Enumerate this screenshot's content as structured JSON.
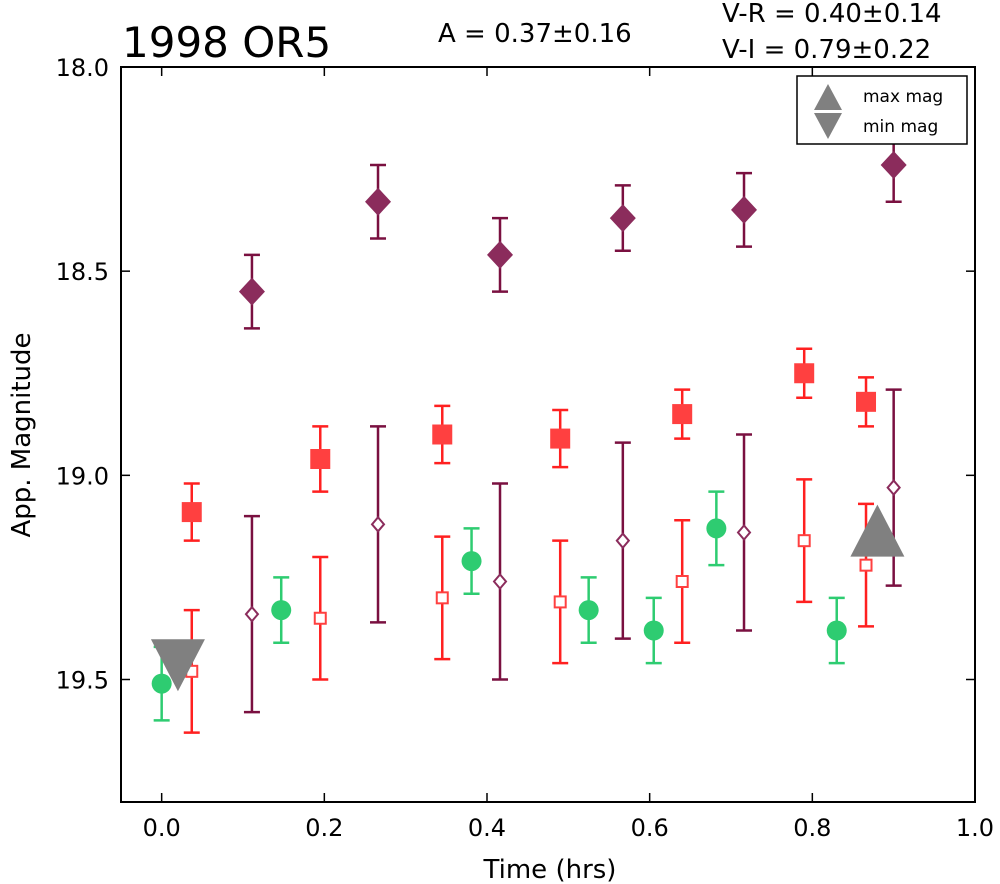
{
  "chart_data": {
    "type": "scatter",
    "title": "1998 OR5",
    "amplitude_text": "A  = 0.37±0.16",
    "color_index_lines": [
      "V-R = 0.40±0.14",
      "V-I  = 0.79±0.22"
    ],
    "xlabel": "Time (hrs)",
    "ylabel": "App. Magnitude",
    "xlim": [
      -0.05,
      1.0
    ],
    "ylim": [
      19.8,
      18.0
    ],
    "y_inverted": true,
    "grid": false,
    "x_ticks": [
      0.0,
      0.2,
      0.4,
      0.6,
      0.8,
      1.0
    ],
    "x_tick_labels": [
      "0.0",
      "0.2",
      "0.4",
      "0.6",
      "0.8",
      "1.0"
    ],
    "y_ticks": [
      18.0,
      18.5,
      19.0,
      19.5
    ],
    "y_tick_labels": [
      "18.0",
      "18.5",
      "19.0",
      "19.5"
    ],
    "legend_position": "top-right",
    "legend": [
      {
        "label": "max mag",
        "marker": "triangle-up",
        "color": "#808080"
      },
      {
        "label": "min mag",
        "marker": "triangle-down",
        "color": "#808080"
      }
    ],
    "series": [
      {
        "marker": "circle-filled",
        "color": "#2ecc71",
        "error_color": "#2ecc71",
        "points": [
          {
            "x": 0.0,
            "y": 19.51,
            "err": 0.09
          },
          {
            "x": 0.147,
            "y": 19.33,
            "err": 0.08
          },
          {
            "x": 0.381,
            "y": 19.21,
            "err": 0.08
          },
          {
            "x": 0.525,
            "y": 19.33,
            "err": 0.08
          },
          {
            "x": 0.605,
            "y": 19.38,
            "err": 0.08
          },
          {
            "x": 0.682,
            "y": 19.13,
            "err": 0.09
          },
          {
            "x": 0.83,
            "y": 19.38,
            "err": 0.08
          }
        ]
      },
      {
        "marker": "square-filled",
        "color": "#ff4040",
        "error_color": "#ff2020",
        "points": [
          {
            "x": 0.037,
            "y": 19.09,
            "err": 0.07
          },
          {
            "x": 0.195,
            "y": 18.96,
            "err": 0.08
          },
          {
            "x": 0.345,
            "y": 18.9,
            "err": 0.07
          },
          {
            "x": 0.49,
            "y": 18.91,
            "err": 0.07
          },
          {
            "x": 0.64,
            "y": 18.85,
            "err": 0.06
          },
          {
            "x": 0.79,
            "y": 18.75,
            "err": 0.06
          },
          {
            "x": 0.866,
            "y": 18.82,
            "err": 0.06
          }
        ]
      },
      {
        "marker": "square-open",
        "color": "#ff4040",
        "error_color": "#ff2020",
        "points": [
          {
            "x": 0.037,
            "y": 19.48,
            "err": 0.15
          },
          {
            "x": 0.195,
            "y": 19.35,
            "err": 0.15
          },
          {
            "x": 0.345,
            "y": 19.3,
            "err": 0.15
          },
          {
            "x": 0.49,
            "y": 19.31,
            "err": 0.15
          },
          {
            "x": 0.64,
            "y": 19.26,
            "err": 0.15
          },
          {
            "x": 0.79,
            "y": 19.16,
            "err": 0.15
          },
          {
            "x": 0.866,
            "y": 19.22,
            "err": 0.15
          }
        ]
      },
      {
        "marker": "diamond-filled",
        "color": "#8b2c5c",
        "error_color": "#7a1040",
        "points": [
          {
            "x": 0.111,
            "y": 18.55,
            "err": 0.09
          },
          {
            "x": 0.266,
            "y": 18.33,
            "err": 0.09
          },
          {
            "x": 0.416,
            "y": 18.46,
            "err": 0.09
          },
          {
            "x": 0.567,
            "y": 18.37,
            "err": 0.08
          },
          {
            "x": 0.716,
            "y": 18.35,
            "err": 0.09
          },
          {
            "x": 0.9,
            "y": 18.24,
            "err": 0.09
          }
        ]
      },
      {
        "marker": "diamond-open",
        "color": "#8b2c5c",
        "error_color": "#7a1040",
        "points": [
          {
            "x": 0.111,
            "y": 19.34,
            "err": 0.24
          },
          {
            "x": 0.266,
            "y": 19.12,
            "err": 0.24
          },
          {
            "x": 0.416,
            "y": 19.26,
            "err": 0.24
          },
          {
            "x": 0.567,
            "y": 19.16,
            "err": 0.24
          },
          {
            "x": 0.716,
            "y": 19.14,
            "err": 0.24
          },
          {
            "x": 0.9,
            "y": 19.03,
            "err": 0.24
          }
        ]
      }
    ],
    "extrema_markers": [
      {
        "kind": "min",
        "marker": "triangle-down",
        "x": 0.02,
        "y": 19.47,
        "color": "#808080"
      },
      {
        "kind": "max",
        "marker": "triangle-up",
        "x": 0.88,
        "y": 19.15,
        "color": "#808080"
      }
    ]
  }
}
